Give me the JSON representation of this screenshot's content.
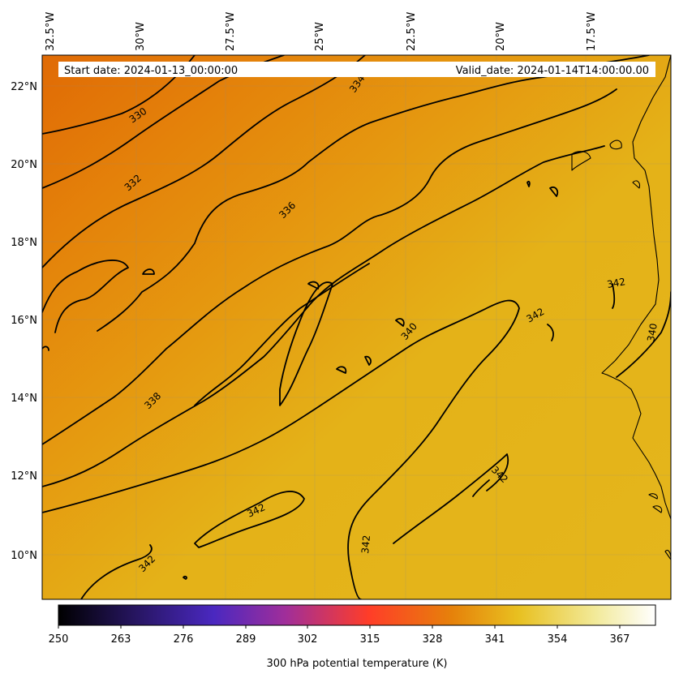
{
  "map": {
    "header": {
      "start_date": "Start date: 2024-01-13_00:00:00",
      "valid_date": "Valid_date: 2024-01-14T14:00:00.00"
    },
    "longitude_labels": [
      "32.5°W",
      "30°W",
      "27.5°W",
      "25°W",
      "22.5°W",
      "20°W",
      "17.5°W"
    ],
    "latitude_labels": [
      "22°N",
      "20°N",
      "18°N",
      "16°N",
      "14°N",
      "12°N",
      "10°N"
    ],
    "contour_labels": [
      {
        "text": "330"
      },
      {
        "text": "332"
      },
      {
        "text": "334"
      },
      {
        "text": "336"
      },
      {
        "text": "338"
      },
      {
        "text": "340"
      },
      {
        "text": "340"
      },
      {
        "text": "342"
      },
      {
        "text": "342"
      },
      {
        "text": "342"
      },
      {
        "text": "342"
      },
      {
        "text": "342"
      },
      {
        "text": "342"
      }
    ],
    "colorbar": {
      "ticks": [
        "250",
        "263",
        "276",
        "289",
        "302",
        "315",
        "328",
        "341",
        "354",
        "367"
      ],
      "label": "300 hPa potential temperature (K)",
      "colors": [
        "#000000",
        "#24145a",
        "#4a28c0",
        "#a02e9a",
        "#ff3d28",
        "#e6820a",
        "#e8c020",
        "#f2ea9a",
        "#ffffff"
      ]
    }
  }
}
